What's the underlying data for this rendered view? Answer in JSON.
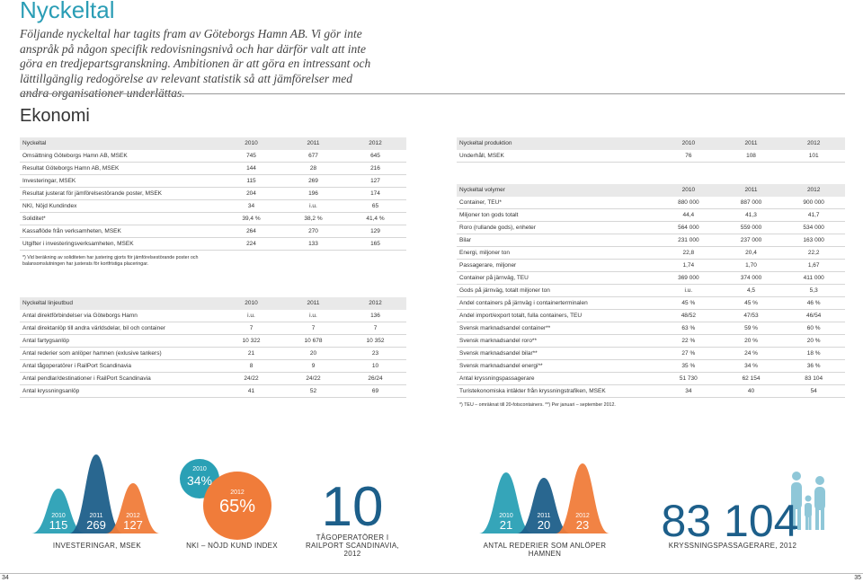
{
  "header": {
    "title": "Nyckeltal",
    "intro": "Följande nyckeltal har tagits fram av Göteborgs Hamn AB. Vi gör inte anspråk på någon specifik redovisningsnivå och har därför valt att inte göra en tredjepartsgranskning. Ambitionen är att göra en intressant och lättillgänglig redogörelse av relevant statistik så att jämförelser med andra organisationer underlättas."
  },
  "section_title": "Ekonomi",
  "tables": [
    {
      "header": [
        "Nyckeltal",
        "2010",
        "2011",
        "2012"
      ],
      "rows": [
        [
          "Omsättning Göteborgs Hamn AB, MSEK",
          "745",
          "677",
          "645"
        ],
        [
          "Resultat Göteborgs Hamn AB, MSEK",
          "144",
          "28",
          "216"
        ],
        [
          "Investeringar, MSEK",
          "115",
          "269",
          "127"
        ],
        [
          "Resultat justerat för jämförelsestörande poster, MSEK",
          "204",
          "196",
          "174"
        ],
        [
          "NKI, Nöjd Kundindex",
          "34",
          "i.u.",
          "65"
        ],
        [
          "Soliditet*",
          "39,4 %",
          "38,2 %",
          "41,4 %"
        ],
        [
          "Kassaflöde från verksamheten, MSEK",
          "264",
          "270",
          "129"
        ],
        [
          "Utgifter i investeringsverksamheten, MSEK",
          "224",
          "133",
          "165"
        ]
      ],
      "footnote": "*) Vid beräkning av soliditeten har justering gjorts för jämförelsestörande poster och balansomslutningen har justerats för kortfristiga placeringar."
    },
    {
      "header": [
        "Nyckeltal linjeutbud",
        "2010",
        "2011",
        "2012"
      ],
      "rows": [
        [
          "Antal direktförbindelser via Göteborgs Hamn",
          "i.u.",
          "i.u.",
          "136"
        ],
        [
          "Antal direktanlöp till andra världsdelar, bil och container",
          "7",
          "7",
          "7"
        ],
        [
          "Antal fartygsanlöp",
          "10 322",
          "10 678",
          "10 352"
        ],
        [
          "Antal rederier som anlöper hamnen (exlusive tankers)",
          "21",
          "20",
          "23"
        ],
        [
          "Antal tågoperatörer i RailPort Scandinavia",
          "8",
          "9",
          "10"
        ],
        [
          "Antal pendlar/destinationer i RailPort Scandinavia",
          "24/22",
          "24/22",
          "26/24"
        ],
        [
          "Antal kryssningsanlöp",
          "41",
          "52",
          "69"
        ]
      ]
    },
    {
      "header": [
        "Nyckeltal produktion",
        "2010",
        "2011",
        "2012"
      ],
      "rows": [
        [
          "Underhåll, MSEK",
          "76",
          "108",
          "101"
        ]
      ]
    },
    {
      "header": [
        "Nyckeltal volymer",
        "2010",
        "2011",
        "2012"
      ],
      "rows": [
        [
          "Container, TEU*",
          "880 000",
          "887 000",
          "900 000"
        ],
        [
          "Miljoner ton gods totalt",
          "44,4",
          "41,3",
          "41,7"
        ],
        [
          "Roro (rullande gods), enheter",
          "564 000",
          "559 000",
          "534 000"
        ],
        [
          "Bilar",
          "231 000",
          "237 000",
          "163 000"
        ],
        [
          "Energi, miljoner ton",
          "22,8",
          "20,4",
          "22,2"
        ],
        [
          "Passagerare, miljoner",
          "1,74",
          "1,70",
          "1,67"
        ],
        [
          "Container på järnväg, TEU",
          "369 000",
          "374 000",
          "411 000"
        ],
        [
          "Gods på järnväg, totalt miljoner ton",
          "i.u.",
          "4,5",
          "5,3"
        ],
        [
          "Andel containers på järnväg i containerterminalen",
          "45 %",
          "45 %",
          "46 %"
        ],
        [
          "Andel import/export totalt, fulla containers, TEU",
          "48/52",
          "47/53",
          "46/54"
        ],
        [
          "Svensk marknadsandel container**",
          "63 %",
          "59 %",
          "60 %"
        ],
        [
          "Svensk marknadsandel roro**",
          "22 %",
          "20 %",
          "20 %"
        ],
        [
          "Svensk marknadsandel bilar**",
          "27 %",
          "24 %",
          "18 %"
        ],
        [
          "Svensk marknadsandel energi**",
          "35 %",
          "34 %",
          "36 %"
        ],
        [
          "Antal kryssningspassagerare",
          "51 730",
          "62 154",
          "83 104"
        ],
        [
          "Turistekonomiska intäkter från kryssningstrafiken, MSEK",
          "34",
          "40",
          "54"
        ]
      ],
      "footnote": "*) TEU – omräknat till 20-fotscontainers. **) Per januari – september 2012."
    }
  ],
  "highlights": [
    {
      "label": "INVESTERINGAR, MSEK",
      "items": [
        {
          "year": "2010",
          "value": "115"
        },
        {
          "year": "2011",
          "value": "269"
        },
        {
          "year": "2012",
          "value": "127"
        }
      ]
    },
    {
      "label": "NKI – NÖJD KUND INDEX",
      "items": [
        {
          "year": "2010",
          "value": "34%"
        },
        {
          "year": "2012",
          "value": "65%"
        }
      ]
    },
    {
      "label": "TÅGOPERATÖRER I RAILPORT SCANDINAVIA, 2012",
      "value": "10"
    },
    {
      "label": "ANTAL REDERIER SOM ANLÖPER HAMNEN",
      "items": [
        {
          "year": "2010",
          "value": "21"
        },
        {
          "year": "2011",
          "value": "20"
        },
        {
          "year": "2012",
          "value": "23"
        }
      ]
    },
    {
      "label": "KRYSSNINGSPASSAGERARE, 2012",
      "value": "83 104"
    }
  ],
  "page_numbers": [
    "34",
    "35"
  ]
}
